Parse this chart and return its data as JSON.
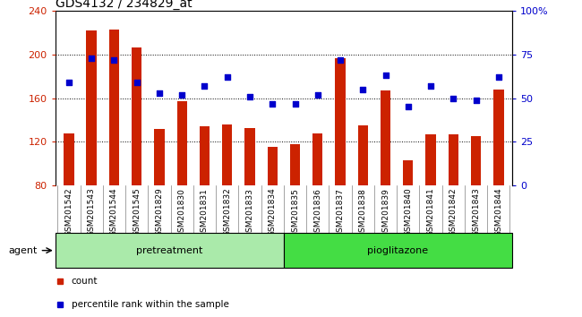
{
  "title": "GDS4132 / 234829_at",
  "categories": [
    "GSM201542",
    "GSM201543",
    "GSM201544",
    "GSM201545",
    "GSM201829",
    "GSM201830",
    "GSM201831",
    "GSM201832",
    "GSM201833",
    "GSM201834",
    "GSM201835",
    "GSM201836",
    "GSM201837",
    "GSM201838",
    "GSM201839",
    "GSM201840",
    "GSM201841",
    "GSM201842",
    "GSM201843",
    "GSM201844"
  ],
  "counts": [
    128,
    222,
    223,
    207,
    132,
    157,
    134,
    136,
    133,
    115,
    118,
    128,
    197,
    135,
    167,
    103,
    127,
    127,
    125,
    168
  ],
  "percentiles": [
    59,
    73,
    72,
    59,
    53,
    52,
    57,
    62,
    51,
    47,
    47,
    52,
    72,
    55,
    63,
    45,
    57,
    50,
    49,
    62
  ],
  "bar_color": "#cc2200",
  "dot_color": "#0000cc",
  "ylim_left": [
    80,
    240
  ],
  "ylim_right": [
    0,
    100
  ],
  "yticks_left": [
    80,
    120,
    160,
    200,
    240
  ],
  "yticks_right": [
    0,
    25,
    50,
    75,
    100
  ],
  "yticklabels_right": [
    "0",
    "25",
    "50",
    "75",
    "100%"
  ],
  "pretreatment_count": 10,
  "pioglitazone_count": 10,
  "pretreatment_label": "pretreatment",
  "pioglitazone_label": "pioglitazone",
  "agent_label": "agent",
  "legend_count_label": "count",
  "legend_percentile_label": "percentile rank within the sample",
  "xticklabels_bg": "#c8c8c8",
  "pretreatment_bg": "#aaeaaa",
  "pioglitazone_bg": "#44dd44",
  "title_fontsize": 10,
  "bar_width": 0.45
}
